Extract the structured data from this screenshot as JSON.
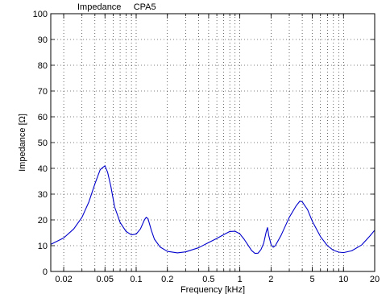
{
  "chart_data": {
    "type": "line",
    "title": "Impedance     CPA5",
    "xlabel": "Frequency [kHz]",
    "ylabel": "Impedance [Ω]",
    "xscale": "log",
    "xlim": [
      0.015,
      20
    ],
    "ylim": [
      0,
      100
    ],
    "grid": true,
    "x_ticks": [
      0.02,
      0.05,
      0.1,
      0.2,
      0.5,
      1,
      2,
      5,
      10,
      20
    ],
    "x_tick_labels": [
      "0.02",
      "0.05",
      "0.1",
      "0.2",
      "0.5",
      "1",
      "2",
      "5",
      "10",
      "20"
    ],
    "y_ticks": [
      0,
      10,
      20,
      30,
      40,
      50,
      60,
      70,
      80,
      90,
      100
    ],
    "y_tick_labels": [
      "0",
      "10",
      "20",
      "30",
      "40",
      "50",
      "60",
      "70",
      "80",
      "90",
      "100"
    ],
    "line_color": "#0000cc",
    "series": [
      {
        "x": [
          0.015,
          0.02,
          0.025,
          0.03,
          0.035,
          0.04,
          0.045,
          0.05,
          0.053,
          0.057,
          0.062,
          0.07,
          0.08,
          0.09,
          0.1,
          0.11,
          0.12,
          0.125,
          0.13,
          0.14,
          0.15,
          0.17,
          0.2,
          0.25,
          0.3,
          0.4,
          0.5,
          0.6,
          0.7,
          0.8,
          0.9,
          1.0,
          1.1,
          1.2,
          1.3,
          1.4,
          1.5,
          1.6,
          1.7,
          1.8,
          1.85,
          1.9,
          2.0,
          2.1,
          2.2,
          2.5,
          3.0,
          3.5,
          3.8,
          4.0,
          4.5,
          5.0,
          6.0,
          7.0,
          8.0,
          9.0,
          10,
          12,
          15,
          18,
          20
        ],
        "y": [
          10.5,
          13.0,
          16.5,
          21.0,
          27.0,
          34.0,
          39.5,
          41.0,
          38.5,
          33.0,
          25.0,
          19.0,
          15.5,
          14.2,
          14.5,
          16.5,
          20.0,
          21.0,
          20.5,
          16.0,
          12.5,
          9.5,
          7.8,
          7.2,
          7.6,
          9.2,
          11.2,
          12.8,
          14.3,
          15.5,
          15.6,
          14.6,
          12.5,
          10.2,
          8.1,
          7.0,
          7.1,
          8.5,
          11.0,
          15.5,
          17.0,
          14.0,
          10.5,
          9.4,
          10.0,
          14.0,
          21.0,
          25.5,
          27.3,
          27.0,
          24.0,
          19.5,
          13.5,
          10.0,
          8.2,
          7.5,
          7.3,
          8.0,
          10.3,
          13.8,
          16.0
        ]
      }
    ]
  }
}
